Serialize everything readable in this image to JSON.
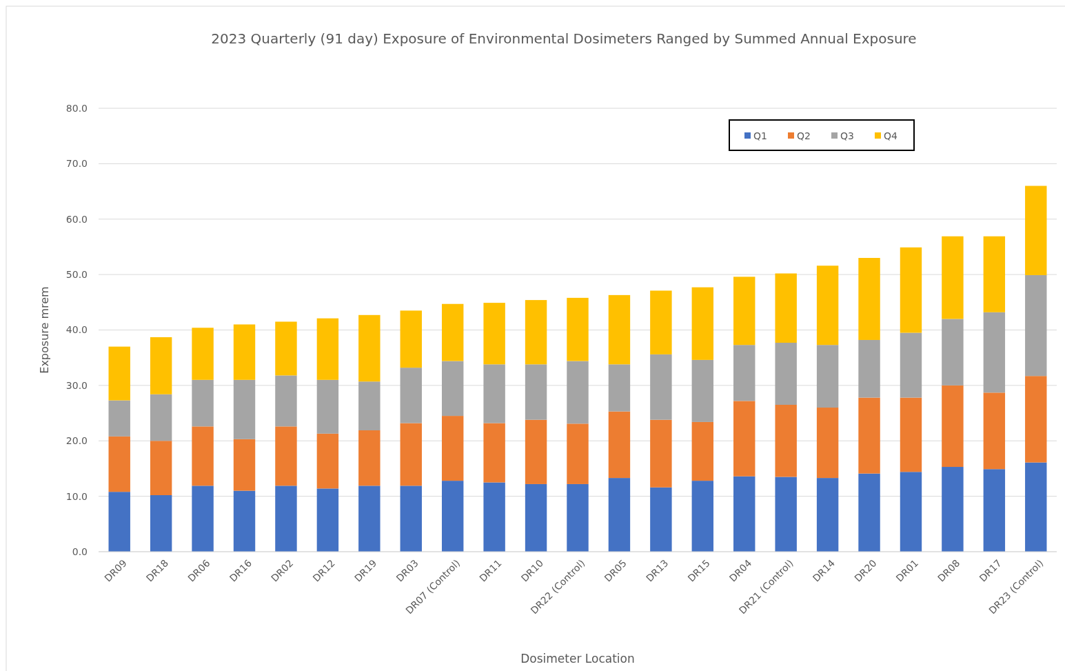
{
  "chart_data": {
    "type": "bar",
    "stacked": true,
    "title": "2023 Quarterly (91 day) Exposure of Environmental Dosimeters Ranged by Summed Annual Exposure",
    "xlabel": "Dosimeter Location",
    "ylabel": "Exposure mrem",
    "categories": [
      "DR09",
      "DR18",
      "DR06",
      "DR16",
      "DR02",
      "DR12",
      "DR19",
      "DR03",
      "DR07  (Control)",
      "DR11",
      "DR10",
      "DR22  (Control)",
      "DR05",
      "DR13",
      "DR15",
      "DR04",
      "DR21 (Control)",
      "DR14",
      "DR20",
      "DR01",
      "DR08",
      "DR17",
      "DR23  (Control)"
    ],
    "series": [
      {
        "name": "Q1",
        "color": "#4472c4",
        "values": [
          10.8,
          10.2,
          11.9,
          11.0,
          11.9,
          11.4,
          11.9,
          11.9,
          12.8,
          12.5,
          12.2,
          12.2,
          13.3,
          11.6,
          12.8,
          13.6,
          13.5,
          13.3,
          14.1,
          14.4,
          15.3,
          14.9,
          16.1
        ]
      },
      {
        "name": "Q2",
        "color": "#ed7d31",
        "values": [
          10.0,
          9.8,
          10.7,
          9.3,
          10.7,
          9.9,
          10.0,
          11.3,
          11.7,
          10.7,
          11.6,
          10.9,
          12.0,
          12.2,
          10.6,
          13.6,
          13.0,
          12.7,
          13.7,
          13.4,
          14.7,
          13.8,
          15.6
        ]
      },
      {
        "name": "Q3",
        "color": "#a5a5a5",
        "values": [
          6.5,
          8.4,
          8.4,
          10.7,
          9.2,
          9.7,
          8.8,
          10.0,
          9.9,
          10.6,
          10.0,
          11.3,
          8.5,
          11.8,
          11.2,
          10.1,
          11.2,
          11.3,
          10.4,
          11.7,
          12.0,
          14.5,
          18.2
        ]
      },
      {
        "name": "Q4",
        "color": "#ffc000",
        "values": [
          9.7,
          10.3,
          9.4,
          10.0,
          9.7,
          11.1,
          12.0,
          10.3,
          10.3,
          11.1,
          11.6,
          11.4,
          12.5,
          11.5,
          13.1,
          12.3,
          12.5,
          14.3,
          14.8,
          15.4,
          14.9,
          13.7,
          16.1
        ]
      }
    ],
    "ylim": [
      0,
      80
    ],
    "yticks": [
      {
        "value": 0,
        "label": "0.0"
      },
      {
        "value": 10,
        "label": "10.0"
      },
      {
        "value": 20,
        "label": "20.0"
      },
      {
        "value": 30,
        "label": "30.0"
      },
      {
        "value": 40,
        "label": "40.0"
      },
      {
        "value": 50,
        "label": "50.0"
      },
      {
        "value": 60,
        "label": "60.0"
      },
      {
        "value": 70,
        "label": "70.0"
      },
      {
        "value": 80,
        "label": "80.0"
      }
    ],
    "grid": "y",
    "legend": "top right"
  }
}
